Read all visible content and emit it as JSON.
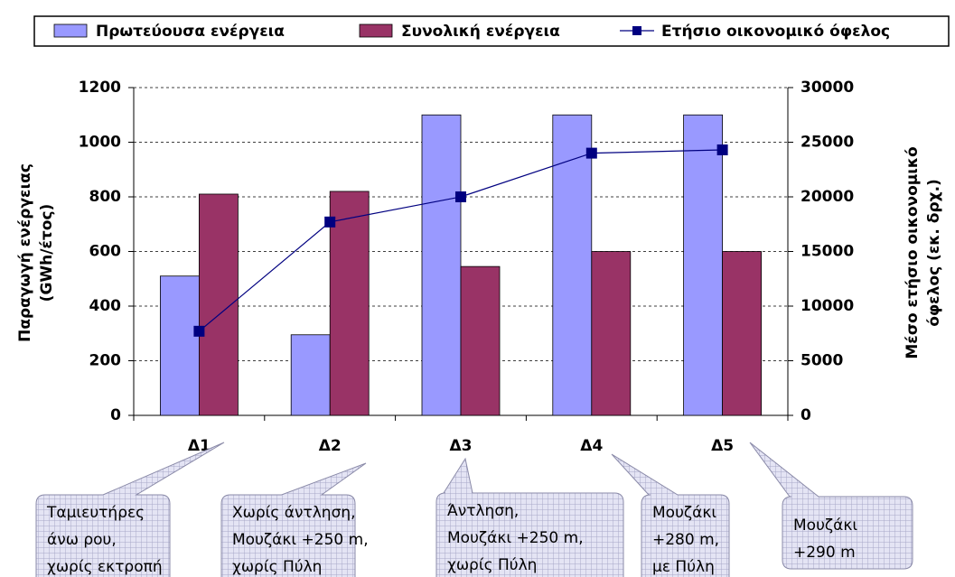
{
  "chart_data": {
    "type": "bar",
    "categories": [
      "Δ1",
      "Δ2",
      "Δ3",
      "Δ4",
      "Δ5"
    ],
    "series": [
      {
        "name": "Πρωτεύουσα ενέργεια",
        "color": "#9999ff",
        "values": [
          510,
          295,
          1100,
          1100,
          1100
        ]
      },
      {
        "name": "Συνολική ενέργεια",
        "color": "#993366",
        "values": [
          810,
          820,
          545,
          600,
          600
        ]
      },
      {
        "name": "Ετήσιο οικονομικό όφελος",
        "color": "#000080",
        "type": "line",
        "axis": "y2",
        "values": [
          7700,
          17700,
          20000,
          24000,
          24300
        ]
      }
    ],
    "ylim": [
      0,
      1200
    ],
    "yticks": [
      0,
      200,
      400,
      600,
      800,
      1000,
      1200
    ],
    "y2lim": [
      0,
      30000
    ],
    "y2ticks": [
      0,
      5000,
      10000,
      15000,
      20000,
      25000,
      30000
    ],
    "y_label": [
      "Παραγωγή ενέργειας",
      "(GWh/έτος)"
    ],
    "y2_label": [
      "Μέσο ετήσιο οικονομικό",
      "όφελος (εκ. δρχ.)"
    ],
    "grid": true,
    "legend": "top",
    "callouts": [
      {
        "lines": [
          "Ταμιευτήρες",
          "άνω ρου,",
          "χωρίς εκτροπή"
        ]
      },
      {
        "lines": [
          "Χωρίς άντληση,",
          "Μουζάκι +250 m,",
          "χωρίς Πύλη"
        ]
      },
      {
        "lines": [
          "Άντληση,",
          "Μουζάκι +250 m,",
          "χωρίς Πύλη"
        ]
      },
      {
        "lines": [
          "Μουζάκι",
          "+280 m,",
          "με Πύλη"
        ]
      },
      {
        "lines": [
          "Μουζάκι",
          "+290 m"
        ]
      }
    ]
  }
}
